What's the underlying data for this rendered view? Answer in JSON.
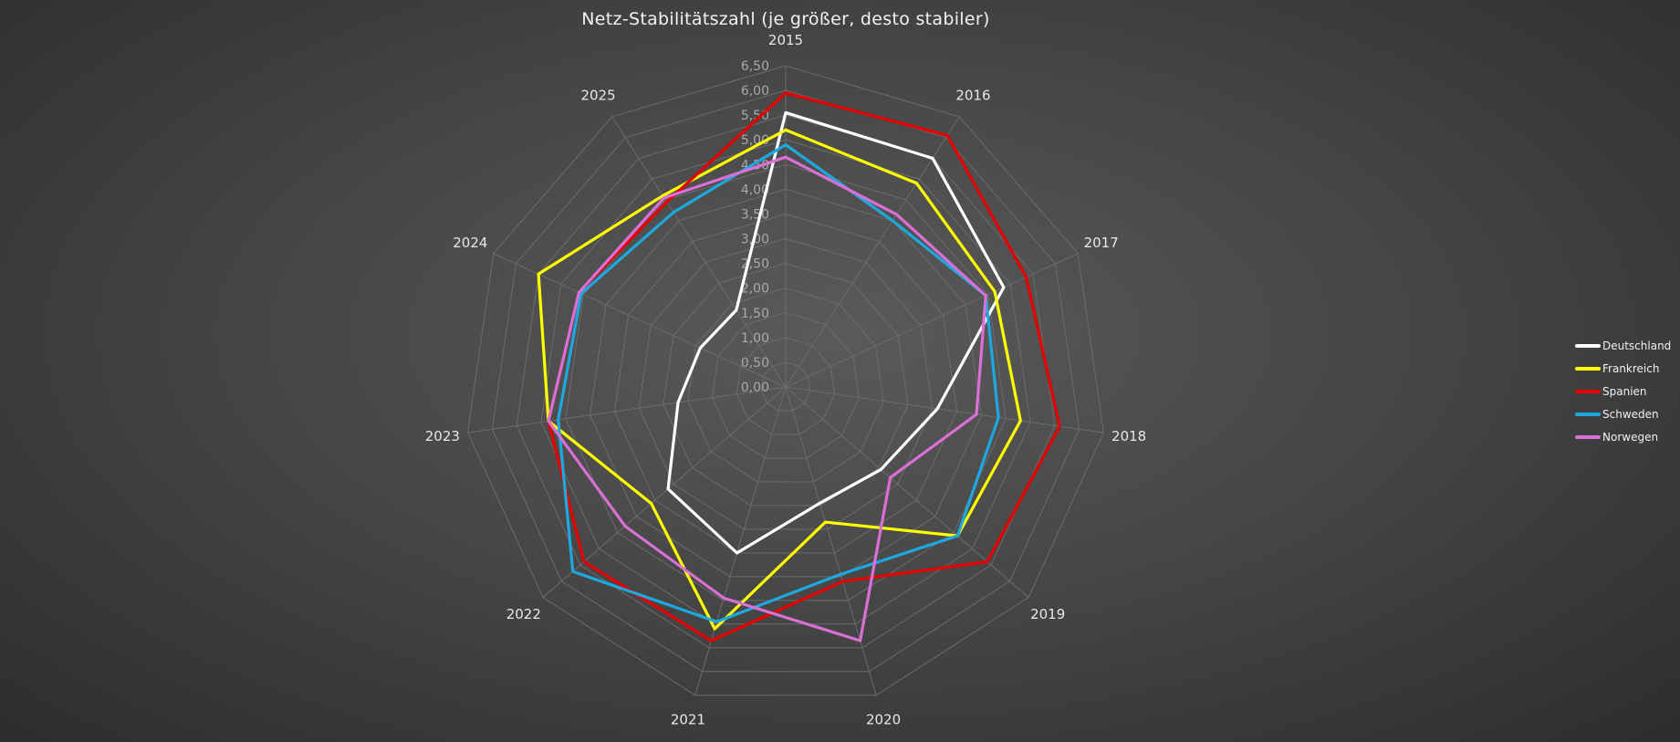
{
  "chart_data": {
    "type": "radar",
    "title": "Netz-Stabilitätszahl (je größer, desto stabiler)",
    "categories": [
      "2015",
      "2016",
      "2017",
      "2018",
      "2019",
      "2020",
      "2021",
      "2022",
      "2023",
      "2024",
      "2025"
    ],
    "rlim": [
      0,
      6.5
    ],
    "ticks": [
      "0,00",
      "0,50",
      "1,00",
      "1,50",
      "2,00",
      "2,50",
      "3,00",
      "3,50",
      "4,00",
      "4,50",
      "5,00",
      "5,50",
      "6,00",
      "6,50"
    ],
    "grid": true,
    "legend_position": "right",
    "series": [
      {
        "name": "Deutschland",
        "color": "#ffffff",
        "values": [
          5.55,
          5.5,
          4.85,
          3.1,
          2.55,
          2.45,
          3.5,
          3.15,
          2.2,
          1.9,
          1.85
        ]
      },
      {
        "name": "Frankreich",
        "color": "#ffff00",
        "values": [
          5.2,
          4.9,
          4.65,
          4.8,
          4.6,
          2.85,
          5.1,
          3.6,
          4.85,
          5.5,
          4.6
        ]
      },
      {
        "name": "Spanien",
        "color": "#e60000",
        "values": [
          5.95,
          6.05,
          5.35,
          5.6,
          5.4,
          4.1,
          5.35,
          5.4,
          4.85,
          4.6,
          4.45
        ]
      },
      {
        "name": "Schweden",
        "color": "#1ea8e0",
        "values": [
          4.9,
          4.0,
          4.45,
          4.35,
          4.6,
          3.95,
          4.95,
          5.7,
          4.65,
          4.55,
          4.2
        ]
      },
      {
        "name": "Norwegen",
        "color": "#da70d6",
        "values": [
          4.65,
          4.15,
          4.45,
          3.9,
          2.8,
          5.35,
          4.45,
          4.3,
          4.85,
          4.6,
          4.55
        ]
      }
    ]
  }
}
